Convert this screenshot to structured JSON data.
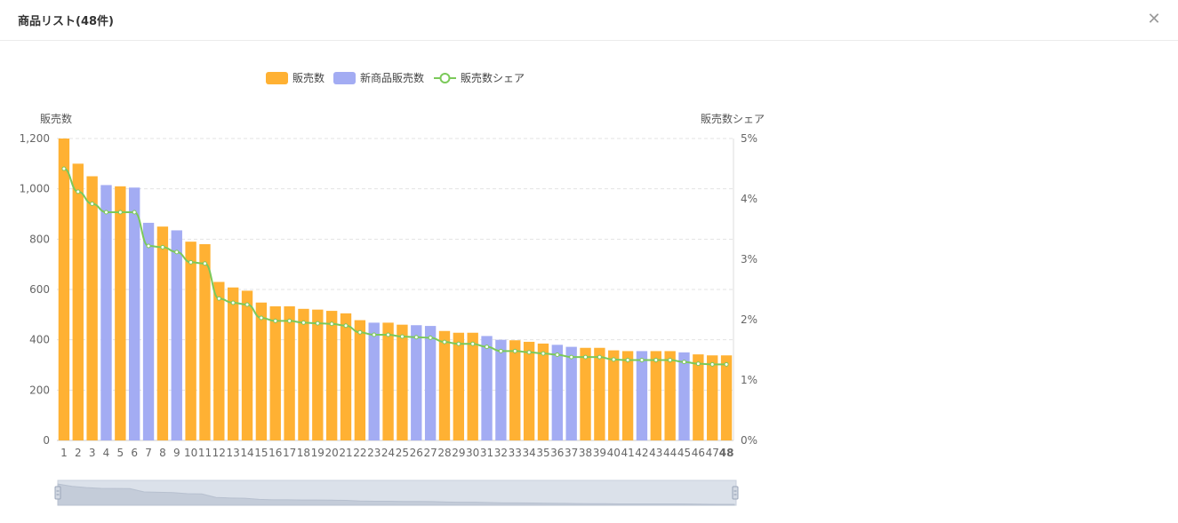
{
  "header": {
    "title": "商品リスト(48件)",
    "close_icon": "close-icon"
  },
  "colors": {
    "sold": "#ffb133",
    "new": "#a3acf3",
    "share": "#7bc95a",
    "grid": "#e3e3e3",
    "axis_text": "#666666"
  },
  "chart_data": {
    "type": "bar",
    "legend": {
      "position": "top-center",
      "items": [
        "販売数",
        "新商品販売数",
        "販売数シェア"
      ]
    },
    "y_left": {
      "label": "販売数",
      "ticks": [
        "0",
        "200",
        "400",
        "600",
        "800",
        "1,000",
        "1,200"
      ],
      "range": [
        0,
        1200
      ]
    },
    "y_right": {
      "label": "販売数シェア",
      "ticks": [
        "0%",
        "1%",
        "2%",
        "3%",
        "4%",
        "5%"
      ],
      "range": [
        0,
        5
      ]
    },
    "grid": "horizontal-dashed",
    "categories": [
      "1",
      "2",
      "3",
      "4",
      "5",
      "6",
      "7",
      "8",
      "9",
      "10",
      "11",
      "12",
      "13",
      "14",
      "15",
      "16",
      "17",
      "18",
      "19",
      "20",
      "21",
      "22",
      "23",
      "24",
      "25",
      "26",
      "27",
      "28",
      "29",
      "30",
      "31",
      "32",
      "33",
      "34",
      "35",
      "36",
      "37",
      "38",
      "39",
      "40",
      "41",
      "42",
      "43",
      "44",
      "45",
      "46",
      "47",
      "48"
    ],
    "values": [
      1200,
      1100,
      1050,
      1015,
      1010,
      1005,
      865,
      850,
      835,
      790,
      780,
      630,
      608,
      595,
      548,
      533,
      533,
      523,
      520,
      515,
      505,
      478,
      468,
      468,
      460,
      458,
      455,
      435,
      428,
      428,
      415,
      400,
      398,
      392,
      385,
      380,
      372,
      368,
      368,
      358,
      355,
      355,
      355,
      355,
      350,
      342,
      338,
      338
    ],
    "is_new": [
      false,
      false,
      false,
      true,
      false,
      true,
      true,
      false,
      true,
      false,
      false,
      false,
      false,
      false,
      false,
      false,
      false,
      false,
      false,
      false,
      false,
      false,
      true,
      false,
      false,
      true,
      true,
      false,
      false,
      false,
      true,
      true,
      false,
      false,
      false,
      true,
      true,
      false,
      false,
      false,
      false,
      true,
      false,
      false,
      true,
      false,
      false,
      false
    ],
    "share": [
      4.5,
      4.12,
      3.92,
      3.78,
      3.78,
      3.78,
      3.22,
      3.2,
      3.12,
      2.95,
      2.93,
      2.35,
      2.28,
      2.25,
      2.03,
      1.98,
      1.98,
      1.95,
      1.94,
      1.93,
      1.9,
      1.79,
      1.75,
      1.75,
      1.72,
      1.71,
      1.7,
      1.63,
      1.6,
      1.6,
      1.55,
      1.48,
      1.48,
      1.46,
      1.44,
      1.42,
      1.38,
      1.38,
      1.38,
      1.34,
      1.33,
      1.33,
      1.33,
      1.33,
      1.3,
      1.27,
      1.26,
      1.26
    ],
    "series": [
      {
        "name": "販売数"
      },
      {
        "name": "新商品販売数"
      },
      {
        "name": "販売数シェア"
      }
    ]
  }
}
